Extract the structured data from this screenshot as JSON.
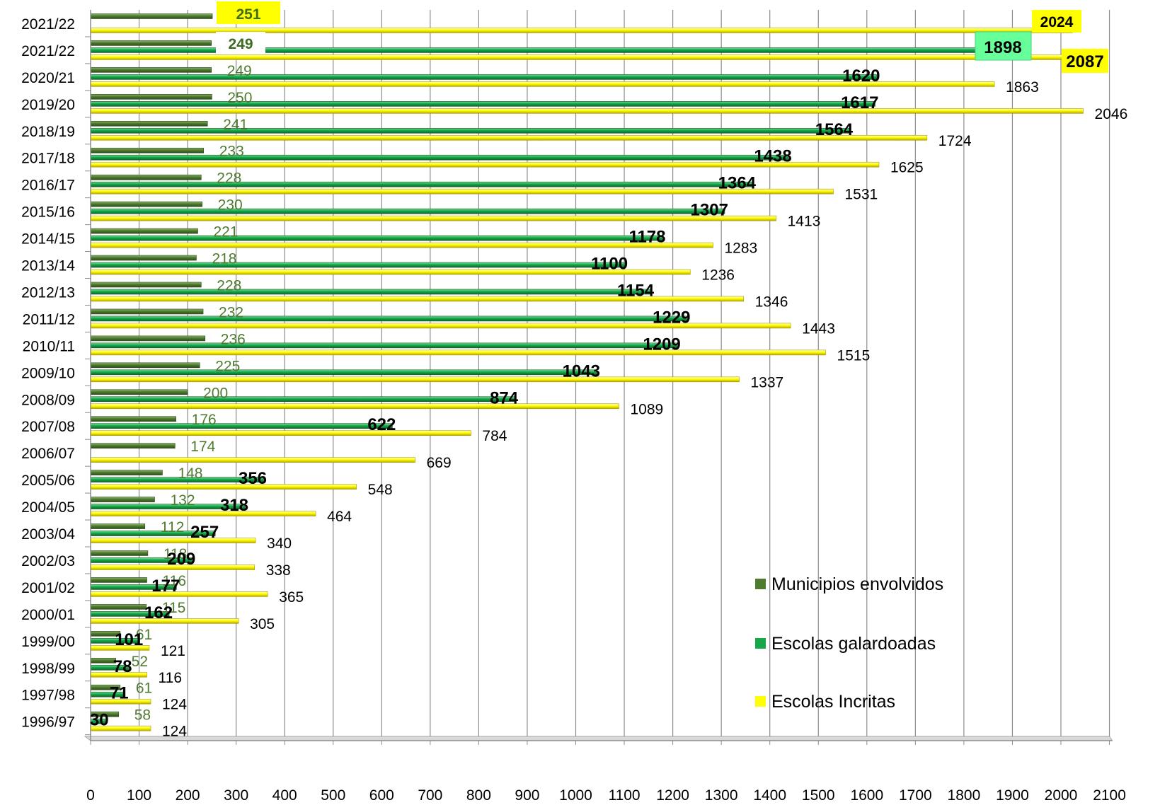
{
  "chart_data": {
    "type": "bar",
    "orientation": "horizontal",
    "categories": [
      "2021/22",
      "2021/22",
      "2020/21",
      "2019/20",
      "2018/19",
      "2017/18",
      "2016/17",
      "2015/16",
      "2014/15",
      "2013/14",
      "2012/13",
      "2011/12",
      "2010/11",
      "2009/10",
      "2008/09",
      "2007/08",
      "2006/07",
      "2005/06",
      "2004/05",
      "2003/04",
      "2002/03",
      "2001/02",
      "2000/01",
      "1999/00",
      "1998/99",
      "1997/98",
      "1996/97"
    ],
    "series": [
      {
        "name": "Municipios envolvidos",
        "color": "#4f7b30",
        "values": [
          251,
          249,
          249,
          250,
          241,
          233,
          228,
          230,
          221,
          218,
          228,
          232,
          236,
          225,
          200,
          176,
          174,
          148,
          132,
          112,
          118,
          116,
          115,
          61,
          52,
          61,
          58
        ],
        "labels": [
          "251",
          "249",
          "249",
          "250",
          "241",
          "233",
          "228",
          "230",
          "221",
          "218",
          "228",
          "232",
          "236",
          "225",
          "200",
          "176",
          "174",
          "148",
          "132",
          "112",
          "118",
          "116",
          "115",
          "61",
          "52",
          "61",
          "58"
        ]
      },
      {
        "name": "Escolas galardoadas",
        "color": "#14a84a",
        "values": [
          null,
          1898,
          1620,
          1617,
          1564,
          1438,
          1364,
          1307,
          1178,
          1100,
          1154,
          1229,
          1209,
          1043,
          874,
          622,
          null,
          356,
          318,
          257,
          209,
          177,
          162,
          101,
          78,
          71,
          30
        ],
        "labels": [
          "",
          "1898",
          "1620",
          "1617",
          "1564",
          "1438",
          "1364",
          "1307",
          "1178",
          "1100",
          "1154",
          "1229",
          "1209",
          "1043",
          "874",
          "622",
          "",
          "356",
          "318",
          "257",
          "209",
          "177",
          "162",
          "101",
          "78",
          "71",
          "30"
        ]
      },
      {
        "name": "Escolas Incritas",
        "color": "#ffff00",
        "values": [
          2024,
          2087,
          1863,
          2046,
          1724,
          1625,
          1531,
          1413,
          1283,
          1236,
          1346,
          1443,
          1515,
          1337,
          1089,
          784,
          669,
          548,
          464,
          340,
          338,
          365,
          305,
          121,
          116,
          124,
          124
        ],
        "labels": [
          "2024",
          "2087",
          "1863",
          "2046",
          "1724",
          "1625",
          "1531",
          "1413",
          "1283",
          "1236",
          "1346",
          "1443",
          "1515",
          "1337",
          "1089",
          "784",
          "669",
          "548",
          "464",
          "340",
          "338",
          "365",
          "305",
          "121",
          "116",
          "124",
          "124"
        ]
      }
    ],
    "xlim": [
      0,
      2100
    ],
    "xticks": [
      "0",
      "100",
      "200",
      "300",
      "400",
      "500",
      "600",
      "700",
      "800",
      "900",
      "1000",
      "1100",
      "1200",
      "1300",
      "1400",
      "1500",
      "1600",
      "1700",
      "1800",
      "1900",
      "2000",
      "2100"
    ],
    "grid": "vertical",
    "legend": "bottom-right",
    "title": "",
    "xlabel": "",
    "ylabel": ""
  }
}
